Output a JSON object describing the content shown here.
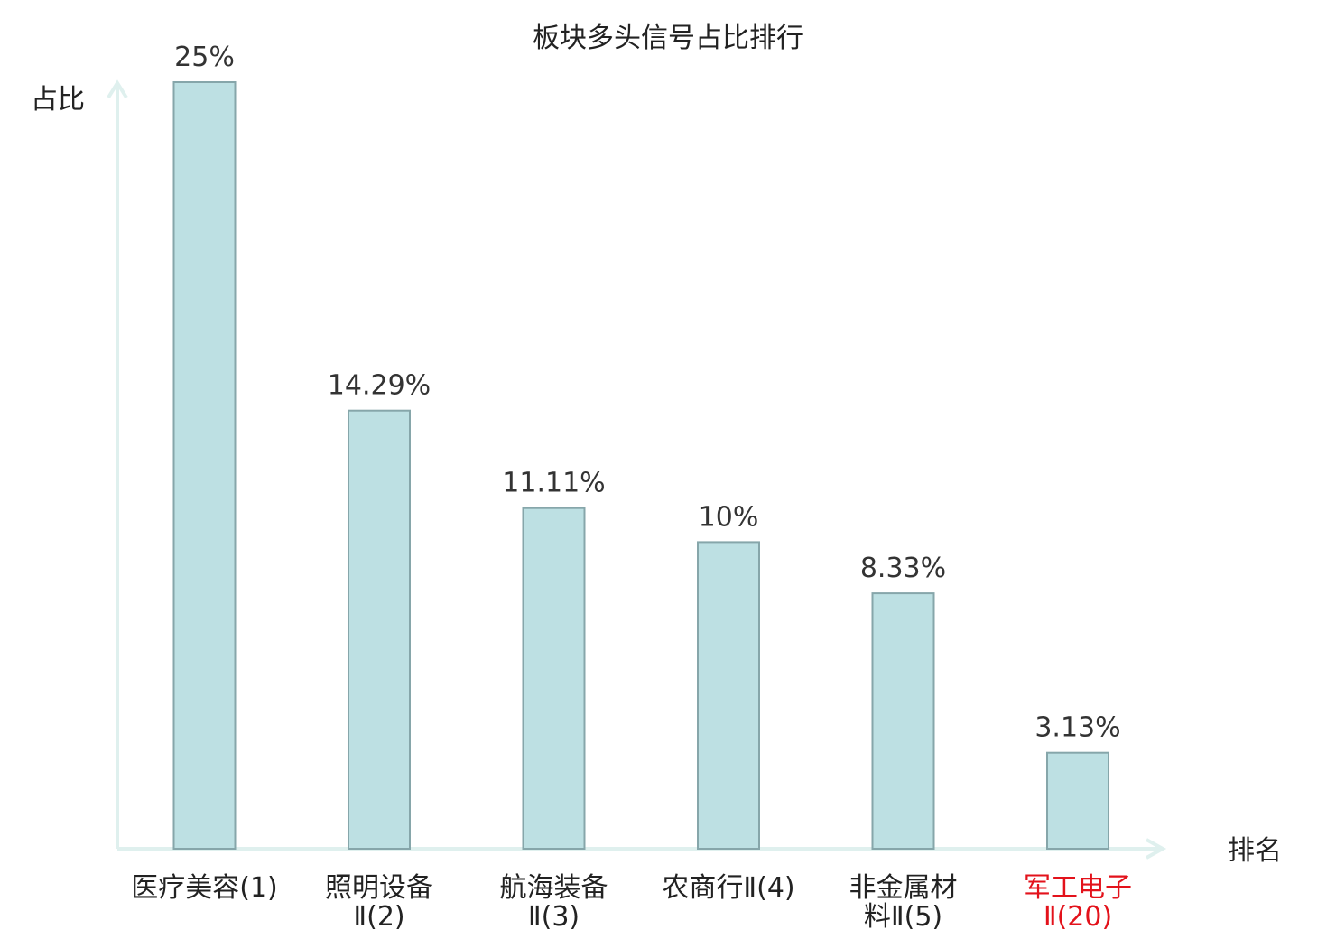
{
  "chart_data": {
    "type": "bar",
    "title": "板块多头信号占比排行",
    "ylabel": "占比",
    "xlabel": "排名",
    "categories": [
      [
        "医疗美容(1)"
      ],
      [
        "照明设备",
        "Ⅱ(2)"
      ],
      [
        "航海装备",
        "Ⅱ(3)"
      ],
      [
        "农商行Ⅱ(4)"
      ],
      [
        "非金属材",
        "料Ⅱ(5)"
      ],
      [
        "军工电子",
        "Ⅱ(20)"
      ]
    ],
    "values": [
      25,
      14.29,
      11.11,
      10,
      8.33,
      3.13
    ],
    "value_labels": [
      "25%",
      "14.29%",
      "11.11%",
      "10%",
      "8.33%",
      "3.13%"
    ],
    "highlight_index": 5,
    "ylim": [
      0,
      25
    ],
    "grid": false,
    "colors": {
      "bar_fill": "#bde0e3",
      "bar_stroke": "#86a6aa",
      "axis": "#dff0ee",
      "text": "#222222",
      "highlight": "#e3121b"
    }
  }
}
